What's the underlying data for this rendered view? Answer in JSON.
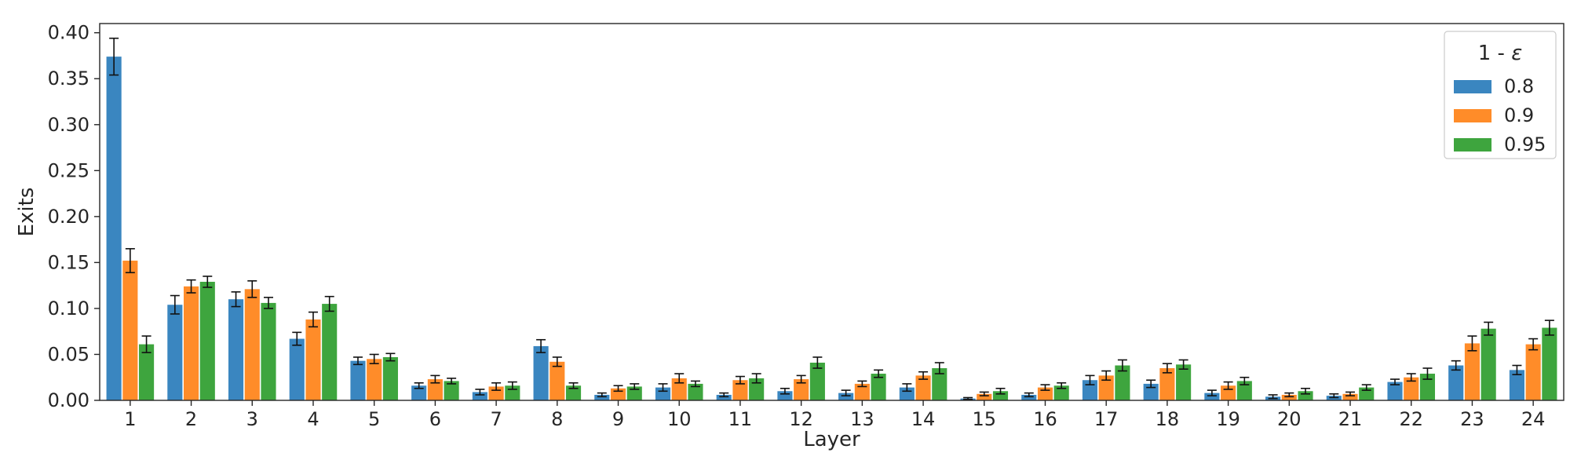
{
  "chart_data": {
    "type": "bar",
    "xlabel": "Layer",
    "ylabel": "Exits",
    "ylim": [
      0,
      0.41
    ],
    "yticks": [
      "0.00",
      "0.05",
      "0.10",
      "0.15",
      "0.20",
      "0.25",
      "0.30",
      "0.35",
      "0.40"
    ],
    "ytick_values": [
      0,
      0.05,
      0.1,
      0.15,
      0.2,
      0.25,
      0.3,
      0.35,
      0.4
    ],
    "categories": [
      "1",
      "2",
      "3",
      "4",
      "5",
      "6",
      "7",
      "8",
      "9",
      "10",
      "11",
      "12",
      "13",
      "14",
      "15",
      "16",
      "17",
      "18",
      "19",
      "20",
      "21",
      "22",
      "23",
      "24"
    ],
    "legend": {
      "title_prefix": "1 - ",
      "title_symbol": "ε",
      "placement": "top-right"
    },
    "grid": false,
    "series": [
      {
        "name": "0.8",
        "color": "#3a86c0",
        "values": [
          0.374,
          0.104,
          0.11,
          0.067,
          0.043,
          0.016,
          0.009,
          0.059,
          0.006,
          0.014,
          0.006,
          0.01,
          0.008,
          0.014,
          0.002,
          0.006,
          0.022,
          0.018,
          0.008,
          0.004,
          0.005,
          0.02,
          0.038,
          0.033
        ],
        "errors": [
          0.02,
          0.01,
          0.008,
          0.007,
          0.004,
          0.003,
          0.003,
          0.007,
          0.002,
          0.004,
          0.002,
          0.003,
          0.003,
          0.004,
          0.001,
          0.002,
          0.005,
          0.004,
          0.003,
          0.002,
          0.002,
          0.003,
          0.005,
          0.005
        ]
      },
      {
        "name": "0.9",
        "color": "#ff8c29",
        "values": [
          0.152,
          0.124,
          0.121,
          0.088,
          0.045,
          0.023,
          0.015,
          0.042,
          0.013,
          0.024,
          0.022,
          0.023,
          0.018,
          0.027,
          0.007,
          0.014,
          0.027,
          0.035,
          0.016,
          0.006,
          0.007,
          0.025,
          0.062,
          0.061
        ],
        "errors": [
          0.013,
          0.007,
          0.009,
          0.008,
          0.005,
          0.004,
          0.004,
          0.005,
          0.003,
          0.005,
          0.004,
          0.004,
          0.003,
          0.004,
          0.002,
          0.003,
          0.005,
          0.005,
          0.004,
          0.002,
          0.002,
          0.004,
          0.008,
          0.006
        ]
      },
      {
        "name": "0.95",
        "color": "#3ea53e",
        "values": [
          0.061,
          0.129,
          0.106,
          0.105,
          0.047,
          0.021,
          0.016,
          0.016,
          0.015,
          0.018,
          0.024,
          0.041,
          0.029,
          0.035,
          0.01,
          0.016,
          0.038,
          0.039,
          0.021,
          0.01,
          0.014,
          0.029,
          0.078,
          0.079
        ],
        "errors": [
          0.009,
          0.006,
          0.006,
          0.008,
          0.004,
          0.003,
          0.004,
          0.003,
          0.003,
          0.003,
          0.005,
          0.006,
          0.004,
          0.006,
          0.003,
          0.003,
          0.006,
          0.005,
          0.004,
          0.003,
          0.003,
          0.006,
          0.007,
          0.008
        ]
      }
    ]
  }
}
